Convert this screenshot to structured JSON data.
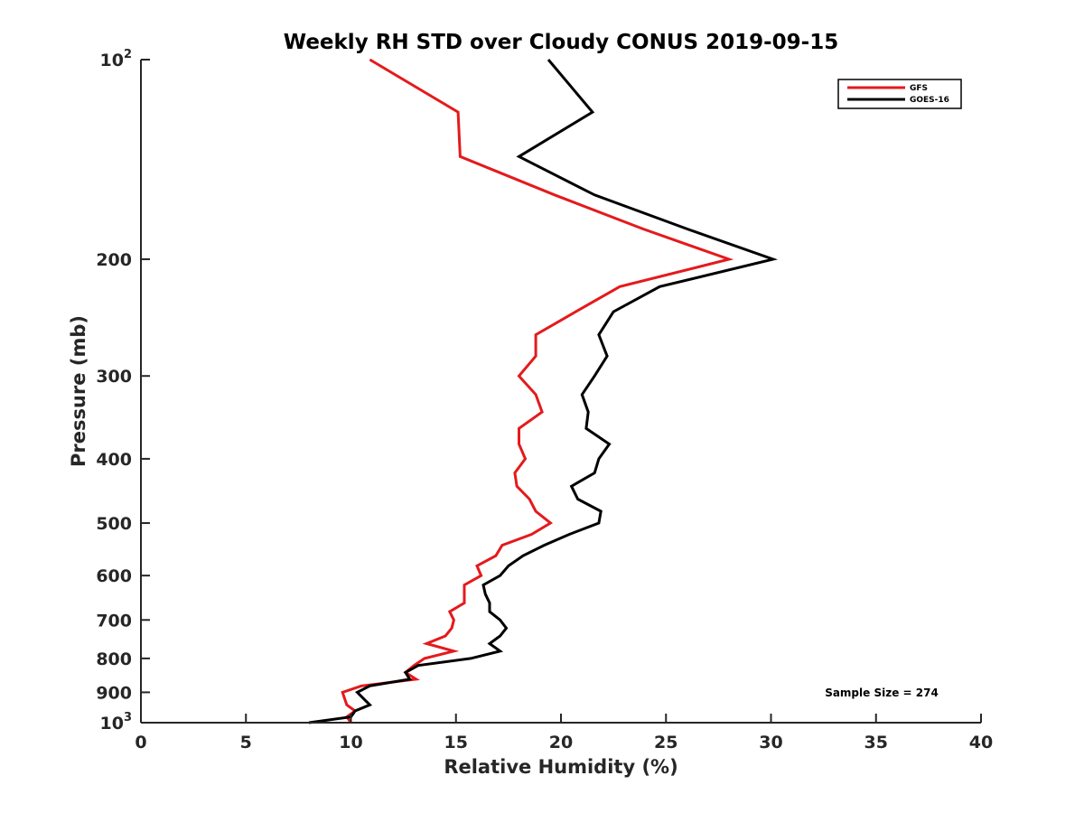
{
  "chart_data": {
    "type": "line",
    "title": "Weekly RH STD over Cloudy CONUS 2019-09-15",
    "xlabel": "Relative Humidity (%)",
    "ylabel": "Pressure (mb)",
    "xlim": [
      0,
      40
    ],
    "ylim": [
      100,
      1000
    ],
    "yscale": "log",
    "yaxis_inverted": true,
    "grid": false,
    "x_ticks": [
      0,
      5,
      10,
      15,
      20,
      25,
      30,
      35,
      40
    ],
    "x_tick_labels": [
      "0",
      "5",
      "10",
      "15",
      "20",
      "25",
      "30",
      "35",
      "40"
    ],
    "y_ticks": [
      {
        "value": 100,
        "base": "10",
        "exp": "2"
      },
      {
        "value": 200,
        "label": "200"
      },
      {
        "value": 300,
        "label": "300"
      },
      {
        "value": 400,
        "label": "400"
      },
      {
        "value": 500,
        "label": "500"
      },
      {
        "value": 600,
        "label": "600"
      },
      {
        "value": 700,
        "label": "700"
      },
      {
        "value": 800,
        "label": "800"
      },
      {
        "value": 900,
        "label": "900"
      },
      {
        "value": 1000,
        "base": "10",
        "exp": "3"
      }
    ],
    "legend": {
      "position": "top-right",
      "entries": [
        "GFS",
        "GOES-16"
      ]
    },
    "annotation": "Sample Size = 274",
    "pressure_levels": [
      100,
      120,
      140,
      160,
      180,
      200,
      220,
      240,
      260,
      280,
      300,
      320,
      340,
      360,
      380,
      400,
      420,
      440,
      460,
      480,
      500,
      520,
      540,
      560,
      580,
      600,
      620,
      640,
      660,
      680,
      700,
      720,
      740,
      760,
      780,
      800,
      820,
      840,
      860,
      880,
      900,
      920,
      940,
      960,
      980,
      1000
    ],
    "series": [
      {
        "name": "GFS",
        "color": "#e41a1c",
        "values": [
          10.9,
          15.1,
          15.2,
          19.7,
          23.9,
          28.0,
          22.8,
          20.7,
          18.8,
          18.8,
          18.0,
          18.8,
          19.1,
          18.0,
          18.0,
          18.3,
          17.8,
          17.9,
          18.5,
          18.8,
          19.5,
          18.6,
          17.2,
          16.9,
          16.0,
          16.2,
          15.4,
          15.4,
          15.4,
          14.7,
          14.9,
          14.8,
          14.5,
          13.6,
          14.9,
          13.5,
          13.0,
          12.6,
          13.1,
          10.5,
          9.6,
          9.7,
          9.8,
          10.2,
          9.8,
          10.0
        ]
      },
      {
        "name": "GOES-16",
        "color": "#000000",
        "values": [
          19.4,
          21.5,
          18.0,
          21.6,
          26.0,
          30.1,
          24.7,
          22.5,
          21.8,
          22.2,
          21.6,
          21.0,
          21.3,
          21.2,
          22.3,
          21.8,
          21.6,
          20.5,
          20.8,
          21.9,
          21.8,
          20.4,
          19.2,
          18.2,
          17.5,
          17.1,
          16.3,
          16.4,
          16.6,
          16.6,
          17.1,
          17.4,
          17.1,
          16.6,
          17.1,
          15.7,
          13.2,
          12.6,
          12.8,
          10.9,
          10.3,
          10.6,
          10.9,
          10.2,
          10.0,
          8.0
        ]
      }
    ]
  }
}
